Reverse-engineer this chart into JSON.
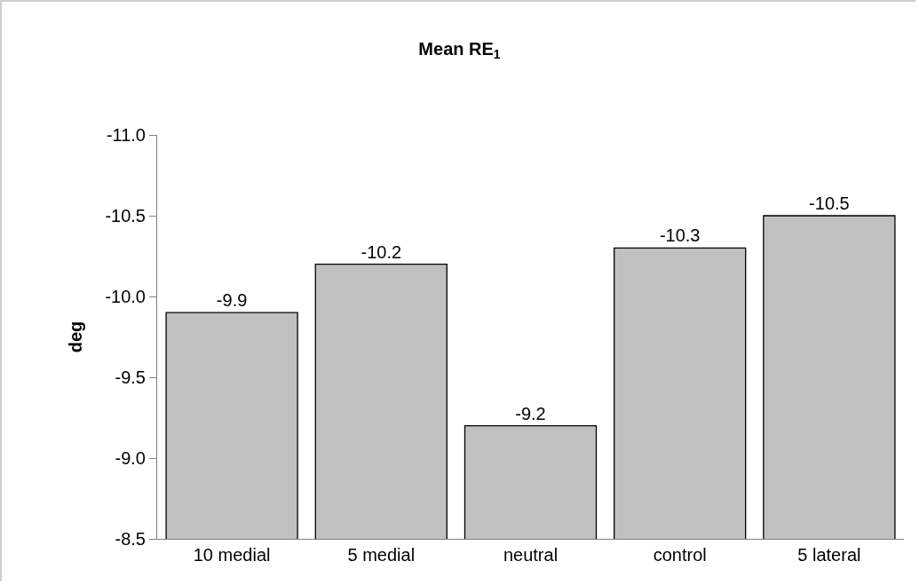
{
  "chart_data": {
    "type": "bar",
    "title": "Mean RE$_{1}$",
    "ylabel": "deg",
    "categories": [
      "10 medial",
      "5 medial",
      "neutral",
      "control",
      "5 lateral"
    ],
    "values": [
      -9.9,
      -10.2,
      -9.2,
      -10.3,
      -10.5
    ],
    "color": "#c0c0c0",
    "data_labels": true,
    "grid": false,
    "ylim": [
      -8.5,
      -11.0
    ],
    "yticks": [
      -8.5,
      {
        "value": -9,
        "label": "-9.0"
      },
      -9.5,
      {
        "value": -10,
        "label": "-10.0"
      },
      -10.5,
      {
        "value": -11,
        "label": "-11.0"
      }
    ]
  }
}
